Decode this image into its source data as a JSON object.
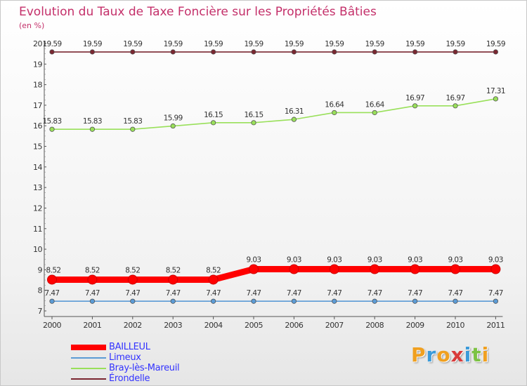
{
  "title": "Evolution du Taux de Taxe Foncière sur les Propriétés Bâties",
  "unit_label": "(en %)",
  "chart_data": {
    "type": "line",
    "x": [
      "2000",
      "2001",
      "2002",
      "2003",
      "2004",
      "2005",
      "2006",
      "2007",
      "2008",
      "2009",
      "2010",
      "2011"
    ],
    "ylim": [
      7,
      20
    ],
    "yticks": [
      7,
      8,
      9,
      10,
      11,
      12,
      13,
      14,
      15,
      16,
      17,
      18,
      19,
      20
    ],
    "grid": false,
    "legend_position": "bottom-left",
    "series": [
      {
        "name": "BAILLEUL",
        "color": "#ff0000",
        "weight": "thick",
        "values": [
          8.52,
          8.52,
          8.52,
          8.52,
          8.52,
          9.03,
          9.03,
          9.03,
          9.03,
          9.03,
          9.03,
          9.03
        ],
        "labels": [
          "8.52",
          "8.52",
          "8.52",
          "8.52",
          "8.52",
          "9.03",
          "9.03",
          "9.03",
          "9.03",
          "9.03",
          "9.03",
          "9.03"
        ]
      },
      {
        "name": "Limeux",
        "color": "#5b9bd5",
        "weight": "thin",
        "values": [
          7.47,
          7.47,
          7.47,
          7.47,
          7.47,
          7.47,
          7.47,
          7.47,
          7.47,
          7.47,
          7.47,
          7.47
        ],
        "labels": [
          "7.47",
          "7.47",
          "7.47",
          "7.47",
          "7.47",
          "7.47",
          "7.47",
          "7.47",
          "7.47",
          "7.47",
          "7.47",
          "7.47"
        ]
      },
      {
        "name": "Bray-lès-Mareuil",
        "color": "#99e05a",
        "weight": "thin",
        "values": [
          15.83,
          15.83,
          15.83,
          15.99,
          16.15,
          16.15,
          16.31,
          16.64,
          16.64,
          16.97,
          16.97,
          17.31
        ],
        "labels": [
          "15.83",
          "15.83",
          "15.83",
          "15.99",
          "16.15",
          "16.15",
          "16.31",
          "16.64",
          "16.64",
          "16.97",
          "16.97",
          "17.31"
        ]
      },
      {
        "name": "Érondelle",
        "color": "#7a2630",
        "weight": "thin",
        "values": [
          19.59,
          19.59,
          19.59,
          19.59,
          19.59,
          19.59,
          19.59,
          19.59,
          19.59,
          19.59,
          19.59,
          19.59
        ],
        "labels": [
          "19.59",
          "19.59",
          "19.59",
          "19.59",
          "19.59",
          "19.59",
          "19.59",
          "19.59",
          "19.59",
          "19.59",
          "19.59",
          "19.59"
        ]
      }
    ]
  },
  "logo": {
    "letters": [
      "P",
      "r",
      "o",
      "x",
      "i",
      "t",
      "i"
    ],
    "colors": [
      "#f0a020",
      "#3a9ad9",
      "#f0a020",
      "#d93a3a",
      "#3a9ad9",
      "#7cc242",
      "#f0a020"
    ]
  }
}
